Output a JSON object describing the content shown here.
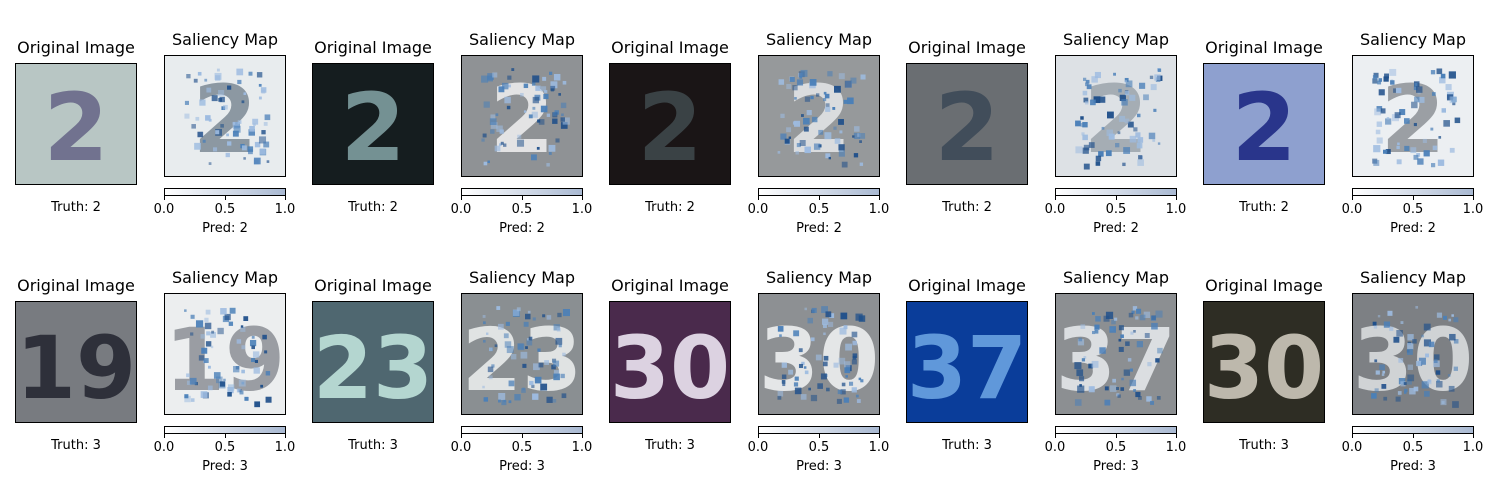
{
  "chart_data": {
    "type": "image-grid",
    "title_original": "Original Image",
    "title_saliency": "Saliency Map",
    "colorbar": {
      "range": [
        0.0,
        1.0
      ],
      "ticks": [
        "0.0",
        "0.5",
        "1.0"
      ],
      "colors": [
        "#ffffff",
        "#a9b9d2"
      ]
    },
    "samples": [
      {
        "truth": "Truth: 2",
        "pred": "Pred: 2",
        "digit": "2",
        "bg": "#b8c6c4",
        "fg": "#5a5878",
        "text_color": "#6a6a8a",
        "saliency_bg": "#e8ecee",
        "saliency_fg": "#7d8a95"
      },
      {
        "truth": "Truth: 2",
        "pred": "Pred: 2",
        "digit": "2",
        "bg": "#151d1f",
        "fg": "#8aa6a8",
        "text_color": "#7f9ea0",
        "saliency_bg": "#8f9295",
        "saliency_fg": "#f2f2f2"
      },
      {
        "truth": "Truth: 2",
        "pred": "Pred: 2",
        "digit": "2",
        "bg": "#1a1516",
        "fg": "#3a4248",
        "text_color": "#3e474b",
        "saliency_bg": "#96999b",
        "saliency_fg": "#e6e8ea"
      },
      {
        "truth": "Truth: 2",
        "pred": "Pred: 2",
        "digit": "2",
        "bg": "#6a6e72",
        "fg": "#46525e",
        "text_color": "#3d4a58",
        "saliency_bg": "#dde1e5",
        "saliency_fg": "#9ca4ac"
      },
      {
        "truth": "Truth: 2",
        "pred": "Pred: 2",
        "digit": "2",
        "bg": "#8ea0cf",
        "fg": "#232e86",
        "text_color": "#1f2a84",
        "saliency_bg": "#eceff2",
        "saliency_fg": "#8e9297"
      },
      {
        "truth": "Truth: 3",
        "pred": "Pred: 3",
        "digit": "19",
        "bg": "#787b80",
        "fg": "#2e2e38",
        "text_color": "#262833",
        "saliency_bg": "#eceeef",
        "saliency_fg": "#8c9096"
      },
      {
        "truth": "Truth: 3",
        "pred": "Pred: 3",
        "digit": "23",
        "bg": "#4f6770",
        "fg": "#c6e6df",
        "text_color": "#bfe3db",
        "saliency_bg": "#8a8f92",
        "saliency_fg": "#f0f2f2"
      },
      {
        "truth": "Truth: 3",
        "pred": "Pred: 3",
        "digit": "30",
        "bg": "#4a2a4c",
        "fg": "#efe8f3",
        "text_color": "#ece5f2",
        "saliency_bg": "#8d9093",
        "saliency_fg": "#f4f5f6"
      },
      {
        "truth": "Truth: 3",
        "pred": "Pred: 3",
        "digit": "37",
        "bg": "#0a3d9a",
        "fg": "#6aa6e6",
        "text_color": "#6aa2e2",
        "saliency_bg": "#8c8f92",
        "saliency_fg": "#e9ecef"
      },
      {
        "truth": "Truth: 3",
        "pred": "Pred: 3",
        "digit": "30",
        "bg": "#2e2d24",
        "fg": "#d4cfc2",
        "text_color": "#cdc8bb",
        "saliency_bg": "#7d8084",
        "saliency_fg": "#dfe2e4"
      }
    ]
  }
}
